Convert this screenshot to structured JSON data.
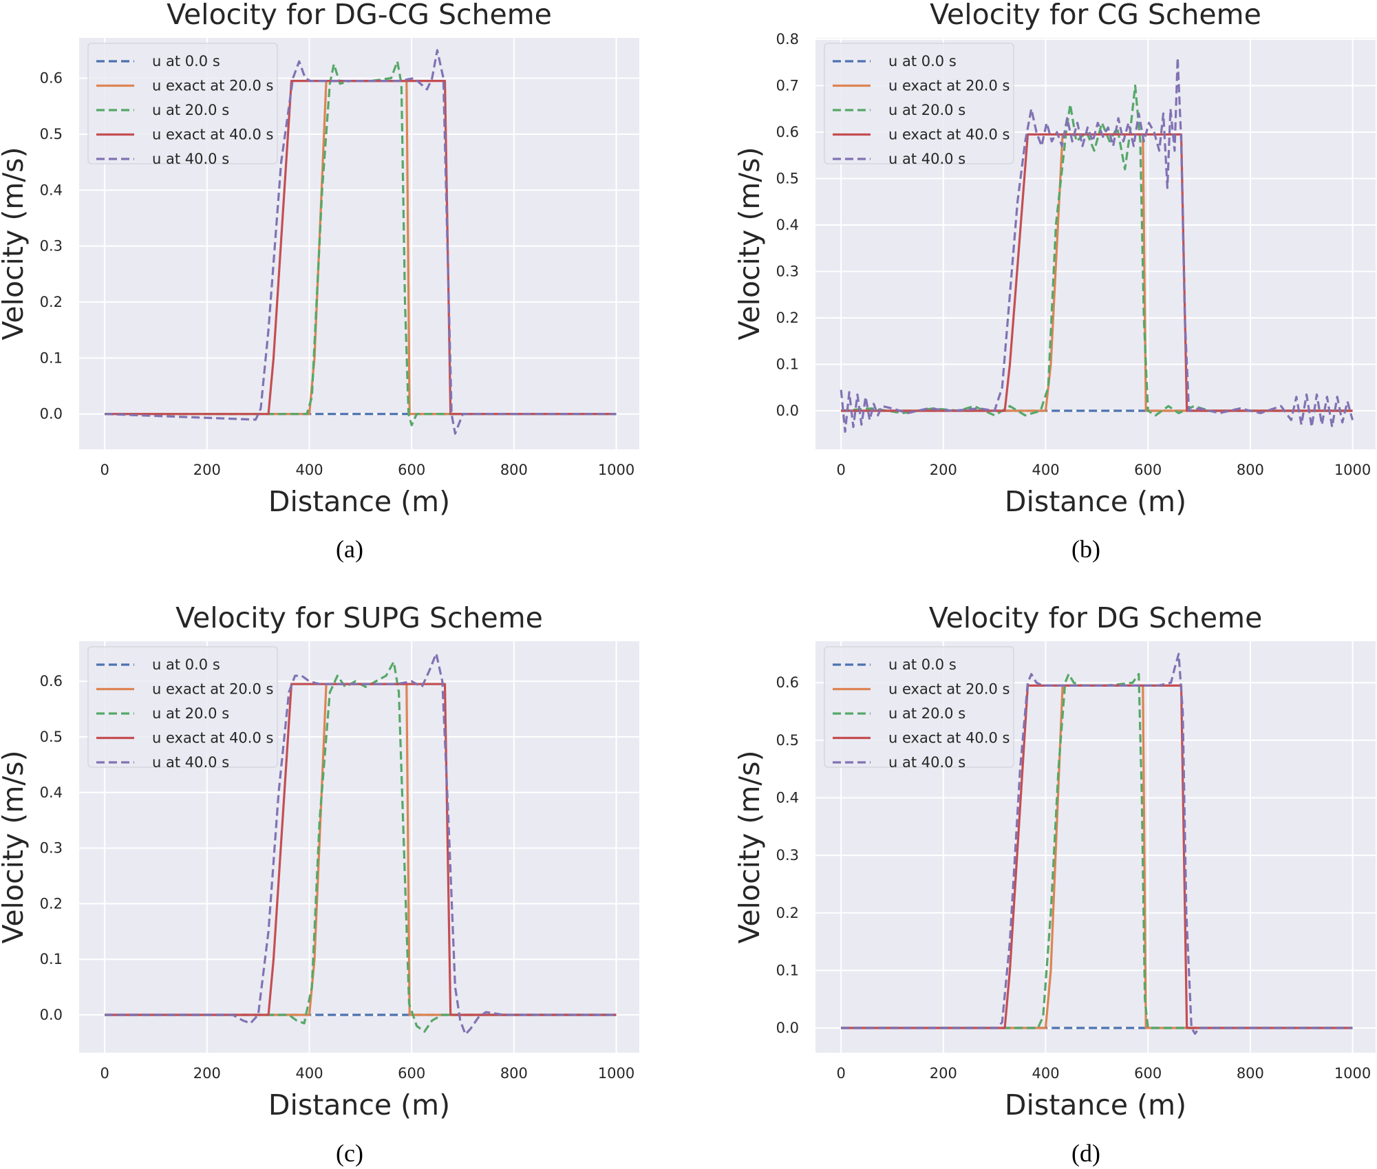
{
  "colors": {
    "background": "#eaeaf2",
    "grid": "#ffffff",
    "u0": "#4c72b0",
    "exact20": "#dd8452",
    "u20": "#55a868",
    "exact40": "#c44e52",
    "u40": "#8172b3"
  },
  "chart_data": [
    {
      "type": "line",
      "title": "Velocity for DG-CG Scheme",
      "caption": "(a)",
      "xlabel": "Distance (m)",
      "ylabel": "Velocity (m/s)",
      "xlim": [
        -50,
        1045
      ],
      "ylim": [
        -0.063,
        0.672
      ],
      "xticks": [
        0,
        200,
        400,
        600,
        800,
        1000
      ],
      "xtick_labels": [
        "0",
        "200",
        "400",
        "600",
        "800",
        "1000"
      ],
      "yticks": [
        0.0,
        0.1,
        0.2,
        0.3,
        0.4,
        0.5,
        0.6
      ],
      "ytick_labels": [
        "0.0",
        "0.1",
        "0.2",
        "0.3",
        "0.4",
        "0.5",
        "0.6"
      ],
      "grid": true,
      "legend_position": "upper-left",
      "series": [
        {
          "name": "u at 0.0 s",
          "color_key": "u0",
          "dash": true,
          "x": [
            0,
            1000
          ],
          "y": [
            0,
            0
          ]
        },
        {
          "name": "u exact at 20.0 s",
          "color_key": "exact20",
          "dash": false,
          "x": [
            0,
            400,
            410,
            433,
            590,
            596,
            1000
          ],
          "y": [
            0,
            0,
            0.1,
            0.595,
            0.595,
            0,
            0
          ]
        },
        {
          "name": "u at 20.0 s",
          "color_key": "u20",
          "dash": true,
          "x": [
            0,
            395,
            405,
            425,
            440,
            448,
            460,
            480,
            520,
            560,
            572,
            580,
            587,
            594,
            600,
            610,
            620,
            1000
          ],
          "y": [
            0,
            0,
            0.03,
            0.4,
            0.59,
            0.625,
            0.59,
            0.595,
            0.595,
            0.6,
            0.63,
            0.59,
            0.2,
            0.0,
            -0.02,
            0.0,
            0.0,
            0
          ]
        },
        {
          "name": "u exact at 40.0 s",
          "color_key": "exact40",
          "dash": false,
          "x": [
            0,
            320,
            330,
            365,
            665,
            676,
            1000
          ],
          "y": [
            0,
            0,
            0.1,
            0.595,
            0.595,
            0,
            0
          ]
        },
        {
          "name": "u at 40.0 s",
          "color_key": "u40",
          "dash": true,
          "x": [
            0,
            295,
            305,
            320,
            345,
            368,
            380,
            392,
            402,
            420,
            470,
            520,
            575,
            605,
            630,
            640,
            650,
            662,
            670,
            678,
            685,
            700,
            1000
          ],
          "y": [
            0,
            -0.01,
            0.01,
            0.15,
            0.45,
            0.6,
            0.63,
            0.6,
            0.595,
            0.595,
            0.595,
            0.595,
            0.595,
            0.6,
            0.58,
            0.6,
            0.65,
            0.6,
            0.3,
            0.0,
            -0.035,
            0.0,
            0
          ]
        }
      ]
    },
    {
      "type": "line",
      "title": "Velocity for CG Scheme",
      "caption": "(b)",
      "xlabel": "Distance (m)",
      "ylabel": "Velocity (m/s)",
      "xlim": [
        -50,
        1045
      ],
      "ylim": [
        -0.083,
        0.803
      ],
      "xticks": [
        0,
        200,
        400,
        600,
        800,
        1000
      ],
      "xtick_labels": [
        "0",
        "200",
        "400",
        "600",
        "800",
        "1000"
      ],
      "yticks": [
        0.0,
        0.1,
        0.2,
        0.3,
        0.4,
        0.5,
        0.6,
        0.7,
        0.8
      ],
      "ytick_labels": [
        "0.0",
        "0.1",
        "0.2",
        "0.3",
        "0.4",
        "0.5",
        "0.6",
        "0.7",
        "0.8"
      ],
      "grid": true,
      "legend_position": "upper-left",
      "series": [
        {
          "name": "u at 0.0 s",
          "color_key": "u0",
          "dash": true,
          "x": [
            0,
            1000
          ],
          "y": [
            0,
            0
          ]
        },
        {
          "name": "u exact at 20.0 s",
          "color_key": "exact20",
          "dash": false,
          "x": [
            0,
            400,
            410,
            433,
            590,
            596,
            1000
          ],
          "y": [
            0,
            0,
            0.1,
            0.595,
            0.595,
            0,
            0
          ]
        },
        {
          "name": "u at 20.0 s",
          "color_key": "u20",
          "dash": true,
          "x": [
            0,
            60,
            120,
            180,
            230,
            260,
            300,
            330,
            360,
            390,
            405,
            420,
            440,
            448,
            460,
            480,
            495,
            510,
            525,
            540,
            555,
            565,
            575,
            585,
            592,
            600,
            615,
            640,
            660,
            690,
            720,
            760,
            1000
          ],
          "y": [
            0,
            0.005,
            -0.005,
            0.005,
            0.0,
            0.01,
            -0.01,
            0.01,
            -0.01,
            0.0,
            0.05,
            0.4,
            0.6,
            0.66,
            0.58,
            0.6,
            0.56,
            0.62,
            0.58,
            0.61,
            0.52,
            0.6,
            0.7,
            0.58,
            0.2,
            0.0,
            -0.01,
            0.01,
            -0.005,
            0.01,
            0.0,
            0.0,
            0
          ]
        },
        {
          "name": "u exact at 40.0 s",
          "color_key": "exact40",
          "dash": false,
          "x": [
            0,
            320,
            330,
            365,
            665,
            676,
            1000
          ],
          "y": [
            0,
            0,
            0.1,
            0.595,
            0.595,
            0,
            0
          ]
        },
        {
          "name": "u at 40.0 s",
          "color_key": "u40",
          "dash": true,
          "x": [
            0,
            8,
            16,
            24,
            32,
            40,
            48,
            56,
            64,
            72,
            80,
            100,
            130,
            170,
            220,
            270,
            300,
            315,
            330,
            345,
            360,
            372,
            382,
            392,
            402,
            412,
            422,
            432,
            442,
            452,
            462,
            472,
            482,
            492,
            502,
            512,
            522,
            532,
            542,
            552,
            562,
            572,
            582,
            592,
            602,
            612,
            622,
            630,
            638,
            644,
            652,
            658,
            665,
            672,
            680,
            700,
            740,
            780,
            820,
            860,
            880,
            890,
            900,
            910,
            920,
            930,
            940,
            950,
            960,
            970,
            980,
            990,
            1000
          ],
          "y": [
            0.045,
            -0.045,
            0.04,
            -0.035,
            0.035,
            -0.03,
            0.03,
            -0.02,
            0.015,
            -0.01,
            0.01,
            0.005,
            -0.005,
            0.005,
            0.0,
            0.005,
            0.0,
            0.05,
            0.25,
            0.45,
            0.58,
            0.65,
            0.6,
            0.57,
            0.62,
            0.58,
            0.6,
            0.57,
            0.63,
            0.58,
            0.62,
            0.57,
            0.61,
            0.58,
            0.62,
            0.59,
            0.61,
            0.57,
            0.63,
            0.58,
            0.62,
            0.57,
            0.64,
            0.58,
            0.62,
            0.6,
            0.56,
            0.64,
            0.48,
            0.65,
            0.56,
            0.76,
            0.58,
            0.2,
            0.0,
            0.005,
            -0.005,
            0.005,
            -0.005,
            0.01,
            -0.02,
            0.03,
            -0.03,
            0.035,
            -0.035,
            0.035,
            -0.03,
            0.03,
            -0.035,
            0.03,
            -0.025,
            0.02,
            -0.02
          ]
        }
      ]
    },
    {
      "type": "line",
      "title": "Velocity for SUPG Scheme",
      "caption": "(c)",
      "xlabel": "Distance (m)",
      "ylabel": "Velocity (m/s)",
      "xlim": [
        -50,
        1045
      ],
      "ylim": [
        -0.068,
        0.672
      ],
      "xticks": [
        0,
        200,
        400,
        600,
        800,
        1000
      ],
      "xtick_labels": [
        "0",
        "200",
        "400",
        "600",
        "800",
        "1000"
      ],
      "yticks": [
        0.0,
        0.1,
        0.2,
        0.3,
        0.4,
        0.5,
        0.6
      ],
      "ytick_labels": [
        "0.0",
        "0.1",
        "0.2",
        "0.3",
        "0.4",
        "0.5",
        "0.6"
      ],
      "grid": true,
      "legend_position": "upper-left",
      "series": [
        {
          "name": "u at 0.0 s",
          "color_key": "u0",
          "dash": true,
          "x": [
            0,
            1000
          ],
          "y": [
            0,
            0
          ]
        },
        {
          "name": "u exact at 20.0 s",
          "color_key": "exact20",
          "dash": false,
          "x": [
            0,
            400,
            410,
            433,
            590,
            596,
            1000
          ],
          "y": [
            0,
            0,
            0.1,
            0.595,
            0.595,
            0,
            0
          ]
        },
        {
          "name": "u at 20.0 s",
          "color_key": "u20",
          "dash": true,
          "x": [
            0,
            360,
            375,
            390,
            405,
            420,
            440,
            455,
            470,
            490,
            510,
            530,
            550,
            565,
            575,
            585,
            595,
            610,
            625,
            640,
            660,
            1000
          ],
          "y": [
            0,
            0,
            -0.01,
            -0.015,
            0.05,
            0.35,
            0.58,
            0.61,
            0.59,
            0.6,
            0.59,
            0.6,
            0.61,
            0.635,
            0.58,
            0.3,
            0.02,
            -0.02,
            -0.03,
            -0.01,
            0.0,
            0
          ]
        },
        {
          "name": "u exact at 40.0 s",
          "color_key": "exact40",
          "dash": false,
          "x": [
            0,
            320,
            330,
            365,
            665,
            676,
            1000
          ],
          "y": [
            0,
            0,
            0.1,
            0.595,
            0.595,
            0,
            0
          ]
        },
        {
          "name": "u at 40.0 s",
          "color_key": "u40",
          "dash": true,
          "x": [
            0,
            250,
            270,
            285,
            300,
            320,
            340,
            360,
            372,
            385,
            400,
            420,
            450,
            480,
            510,
            540,
            570,
            600,
            620,
            635,
            648,
            660,
            672,
            685,
            695,
            705,
            715,
            730,
            745,
            760,
            780,
            1000
          ],
          "y": [
            0,
            0,
            -0.01,
            -0.015,
            0.0,
            0.15,
            0.4,
            0.58,
            0.61,
            0.61,
            0.6,
            0.595,
            0.595,
            0.595,
            0.595,
            0.595,
            0.595,
            0.6,
            0.59,
            0.62,
            0.65,
            0.6,
            0.35,
            0.05,
            -0.01,
            -0.035,
            -0.025,
            -0.005,
            0.005,
            0.003,
            0.0,
            0
          ]
        }
      ]
    },
    {
      "type": "line",
      "title": "Velocity for DG Scheme",
      "caption": "(d)",
      "xlabel": "Distance (m)",
      "ylabel": "Velocity (m/s)",
      "xlim": [
        -50,
        1045
      ],
      "ylim": [
        -0.043,
        0.672
      ],
      "xticks": [
        0,
        200,
        400,
        600,
        800,
        1000
      ],
      "xtick_labels": [
        "0",
        "200",
        "400",
        "600",
        "800",
        "1000"
      ],
      "yticks": [
        0.0,
        0.1,
        0.2,
        0.3,
        0.4,
        0.5,
        0.6
      ],
      "ytick_labels": [
        "0.0",
        "0.1",
        "0.2",
        "0.3",
        "0.4",
        "0.5",
        "0.6"
      ],
      "grid": true,
      "legend_position": "upper-left",
      "series": [
        {
          "name": "u at 0.0 s",
          "color_key": "u0",
          "dash": true,
          "x": [
            0,
            1000
          ],
          "y": [
            0,
            0
          ]
        },
        {
          "name": "u exact at 20.0 s",
          "color_key": "exact20",
          "dash": false,
          "x": [
            0,
            400,
            410,
            433,
            590,
            596,
            1000
          ],
          "y": [
            0,
            0,
            0.1,
            0.595,
            0.595,
            0,
            0
          ]
        },
        {
          "name": "u at 20.0 s",
          "color_key": "u20",
          "dash": true,
          "x": [
            0,
            385,
            395,
            410,
            425,
            438,
            445,
            455,
            470,
            520,
            570,
            582,
            588,
            594,
            600,
            1000
          ],
          "y": [
            0,
            0,
            0.02,
            0.2,
            0.45,
            0.6,
            0.615,
            0.6,
            0.595,
            0.595,
            0.6,
            0.615,
            0.4,
            0.05,
            0.0,
            0
          ]
        },
        {
          "name": "u exact at 40.0 s",
          "color_key": "exact40",
          "dash": false,
          "x": [
            0,
            320,
            330,
            365,
            665,
            676,
            1000
          ],
          "y": [
            0,
            0,
            0.1,
            0.595,
            0.595,
            0,
            0
          ]
        },
        {
          "name": "u at 40.0 s",
          "color_key": "u40",
          "dash": true,
          "x": [
            0,
            305,
            315,
            330,
            350,
            365,
            372,
            382,
            395,
            450,
            550,
            620,
            645,
            652,
            660,
            668,
            675,
            685,
            692,
            700,
            1000
          ],
          "y": [
            0,
            0,
            0.01,
            0.15,
            0.45,
            0.6,
            0.615,
            0.6,
            0.595,
            0.595,
            0.595,
            0.595,
            0.6,
            0.625,
            0.65,
            0.55,
            0.2,
            0.0,
            -0.01,
            0.0,
            0
          ]
        }
      ]
    }
  ]
}
